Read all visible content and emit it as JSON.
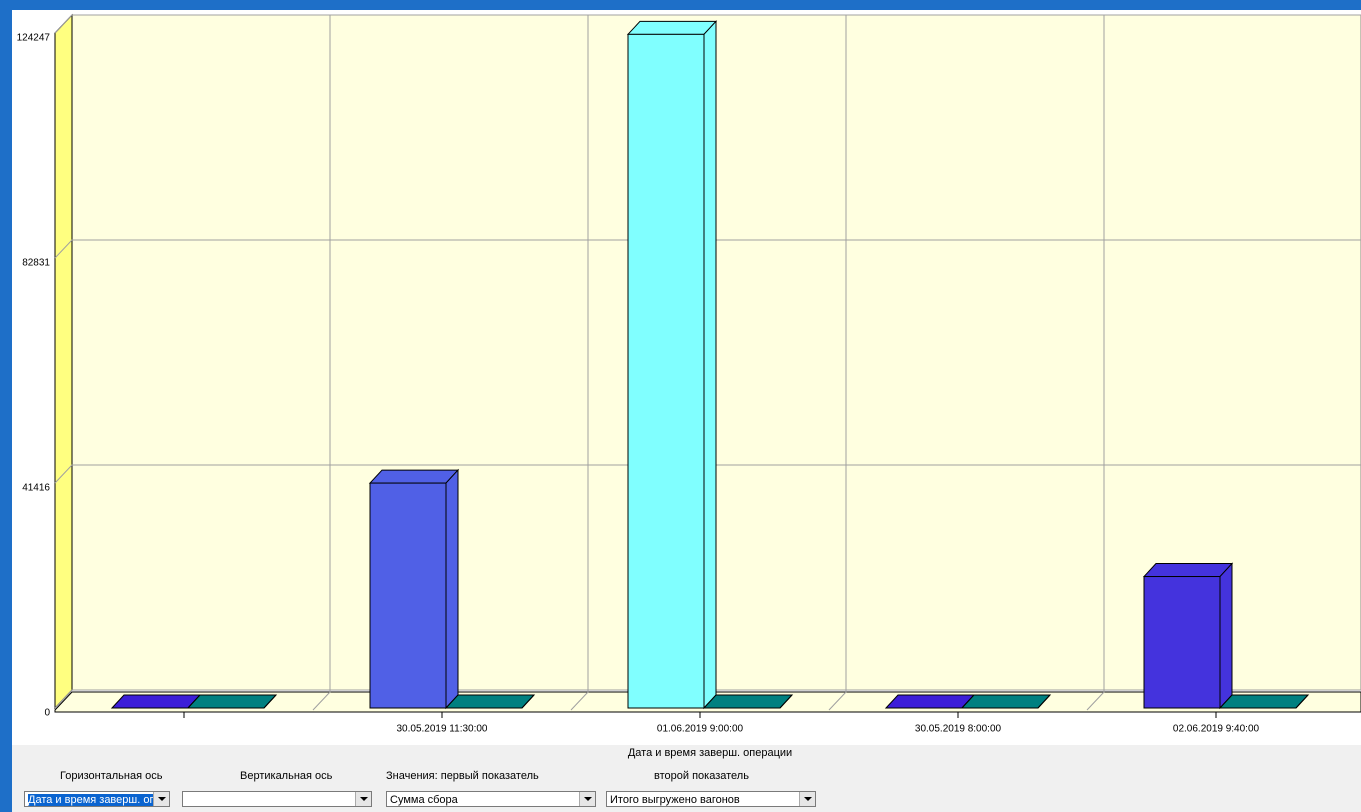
{
  "chart_data": {
    "type": "bar3d",
    "x_label": "Дата и время заверш. операции",
    "categories": [
      null,
      "30.05.2019 11:30:00",
      "01.06.2019 9:00:00",
      "30.05.2019 8:00:00",
      "02.06.2019 9:40:00"
    ],
    "series": [
      {
        "name": "Сумма сбора",
        "colors": [
          "#3c1ed8",
          "#5060e6",
          "#80ffff",
          "#3c1ed8",
          "#4433dd"
        ],
        "values": [
          0,
          41400,
          124000,
          0,
          24200
        ]
      },
      {
        "name": "Итого выгружено вагонов",
        "color": "#008080",
        "values": [
          0,
          0,
          0,
          0,
          0
        ]
      }
    ],
    "ylim": [
      0,
      124247
    ],
    "yticks": [
      0,
      41416,
      82831,
      124247
    ],
    "grid": true
  },
  "controls": {
    "horizontal_axis": {
      "label": "Горизонтальная ось",
      "value": "Дата и время заверш. операц"
    },
    "vertical_axis": {
      "label": "Вертикальная ось"
    },
    "first_value": {
      "label": "Значения:   первый показатель"
    },
    "second_value": {
      "label": "второй показатель"
    }
  }
}
